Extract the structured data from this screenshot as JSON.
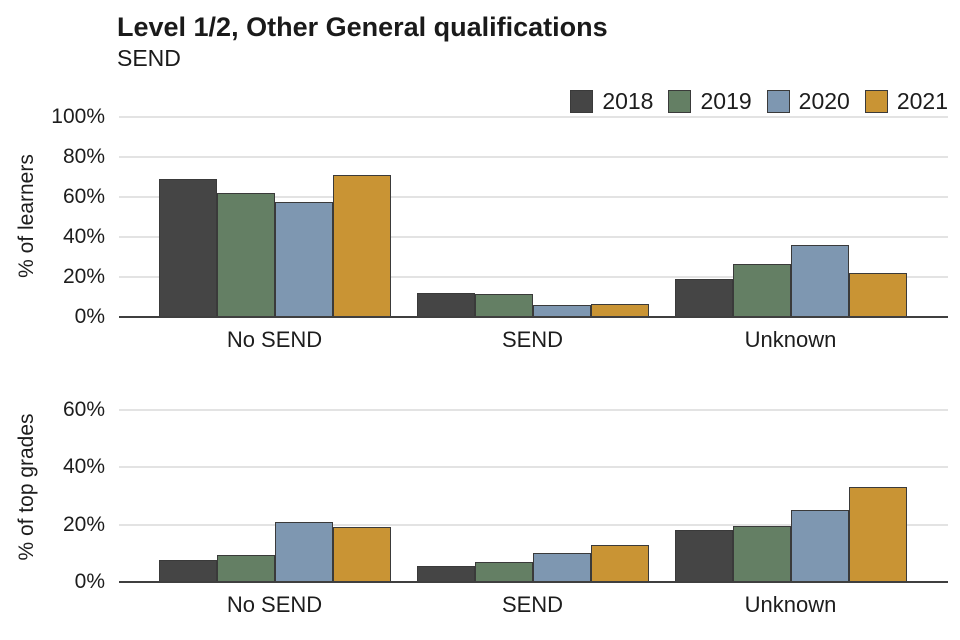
{
  "header": {
    "title": "Level 1/2, Other General qualifications",
    "subtitle": "SEND"
  },
  "legend": {
    "position": "top-right",
    "items": [
      {
        "label": "2018",
        "color": "#454545"
      },
      {
        "label": "2019",
        "color": "#647f64"
      },
      {
        "label": "2020",
        "color": "#7e97b1"
      },
      {
        "label": "2021",
        "color": "#c99434"
      }
    ]
  },
  "colors": {
    "series_2018": "#454545",
    "series_2019": "#647f64",
    "series_2020": "#7e97b1",
    "series_2021": "#c99434",
    "bar_border": "#3a3a3a",
    "gridline": "#e3e3e3",
    "axis_line": "#3f3f3f",
    "text": "#1a1a1a"
  },
  "chart_data": [
    {
      "type": "bar",
      "panel": "top",
      "ylabel": "% of learners",
      "categories": [
        "No SEND",
        "SEND",
        "Unknown"
      ],
      "series": [
        {
          "name": "2018",
          "color": "#454545",
          "values": [
            69,
            12,
            19
          ]
        },
        {
          "name": "2019",
          "color": "#647f64",
          "values": [
            62,
            11.5,
            26.5
          ]
        },
        {
          "name": "2020",
          "color": "#7e97b1",
          "values": [
            57.5,
            6,
            36
          ]
        },
        {
          "name": "2021",
          "color": "#c99434",
          "values": [
            71,
            6.5,
            22
          ]
        }
      ],
      "ylim": [
        0,
        100
      ],
      "yticks": [
        0,
        20,
        40,
        60,
        80,
        100
      ],
      "ytick_labels": [
        "0%",
        "20%",
        "40%",
        "60%",
        "80%",
        "100%"
      ],
      "grid": true,
      "legend_position": "top-right"
    },
    {
      "type": "bar",
      "panel": "bottom",
      "ylabel": "% of top grades",
      "categories": [
        "No SEND",
        "SEND",
        "Unknown"
      ],
      "series": [
        {
          "name": "2018",
          "color": "#454545",
          "values": [
            7.5,
            5.5,
            18
          ]
        },
        {
          "name": "2019",
          "color": "#647f64",
          "values": [
            9.5,
            7,
            19.5
          ]
        },
        {
          "name": "2020",
          "color": "#7e97b1",
          "values": [
            21,
            10,
            25
          ]
        },
        {
          "name": "2021",
          "color": "#c99434",
          "values": [
            19,
            13,
            33
          ]
        }
      ],
      "ylim": [
        0,
        70
      ],
      "yticks": [
        0,
        20,
        40,
        60
      ],
      "ytick_labels": [
        "0%",
        "20%",
        "40%",
        "60%"
      ],
      "grid": true,
      "legend_position": "none"
    }
  ]
}
